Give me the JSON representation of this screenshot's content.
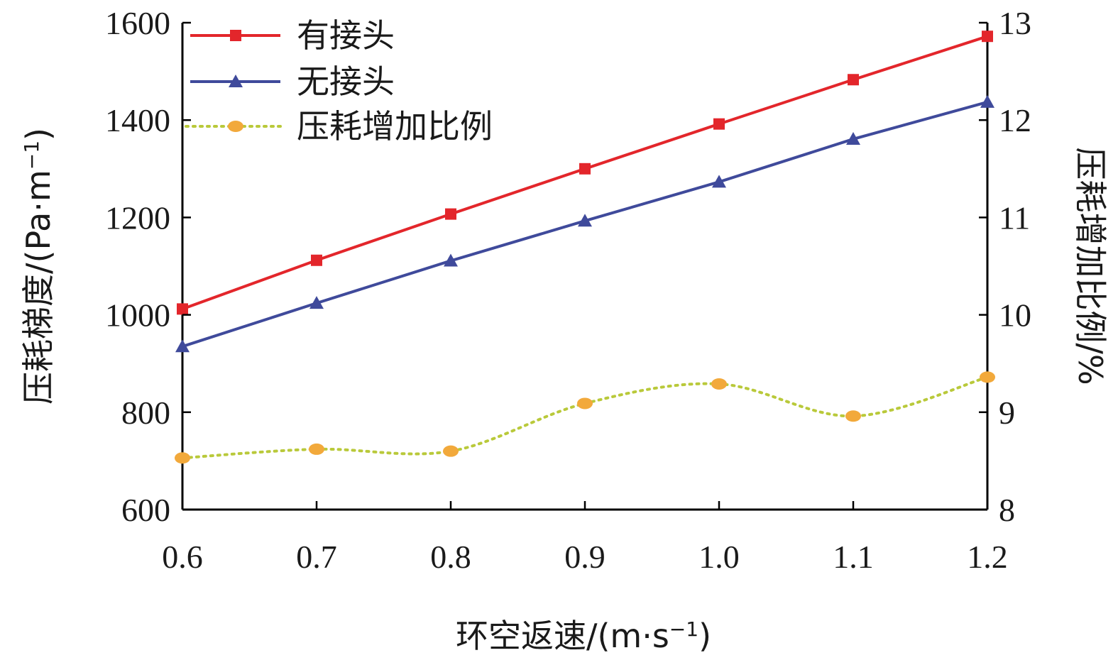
{
  "chart_data": {
    "type": "line",
    "x": [
      0.6,
      0.7,
      0.8,
      0.9,
      1.0,
      1.1,
      1.2
    ],
    "x_tick_labels": [
      "0.6",
      "0.7",
      "0.8",
      "0.9",
      "1.0",
      "1.1",
      "1.2"
    ],
    "xlim": [
      0.6,
      1.2
    ],
    "xlabel": "环空返速/(m·s",
    "xlabel_sup": "−1",
    "xlabel_close": ")",
    "ylim": [
      600,
      1600
    ],
    "y_ticks": [
      600,
      800,
      1000,
      1200,
      1400,
      1600
    ],
    "y_tick_labels": [
      "600",
      "800",
      "1000",
      "1200",
      "1400",
      "1600"
    ],
    "ylabel": "压耗梯度/(Pa·m",
    "ylabel_sup": "−1",
    "ylabel_close": ")",
    "y2lim": [
      8,
      13
    ],
    "y2_ticks": [
      8,
      9,
      10,
      11,
      12,
      13
    ],
    "y2_tick_labels": [
      "8",
      "9",
      "10",
      "11",
      "12",
      "13"
    ],
    "y2label": "压耗增加比例/%",
    "grid": false,
    "legend_position": "top-left",
    "series": [
      {
        "name": "有接头",
        "axis": "left",
        "marker": "square",
        "line": "solid",
        "color": "#e3262b",
        "values": [
          1012,
          1112,
          1207,
          1300,
          1392,
          1483,
          1572
        ]
      },
      {
        "name": "无接头",
        "axis": "left",
        "marker": "triangle",
        "line": "solid",
        "color": "#3f4a9b",
        "values": [
          935,
          1024,
          1111,
          1193,
          1273,
          1361,
          1437
        ]
      },
      {
        "name": "压耗增加比例",
        "axis": "right",
        "marker": "circle",
        "line": "dotted",
        "color": "#b9c93a",
        "marker_color": "#f2a93b",
        "values": [
          8.53,
          8.62,
          8.6,
          9.09,
          9.29,
          8.96,
          9.36
        ]
      }
    ]
  }
}
